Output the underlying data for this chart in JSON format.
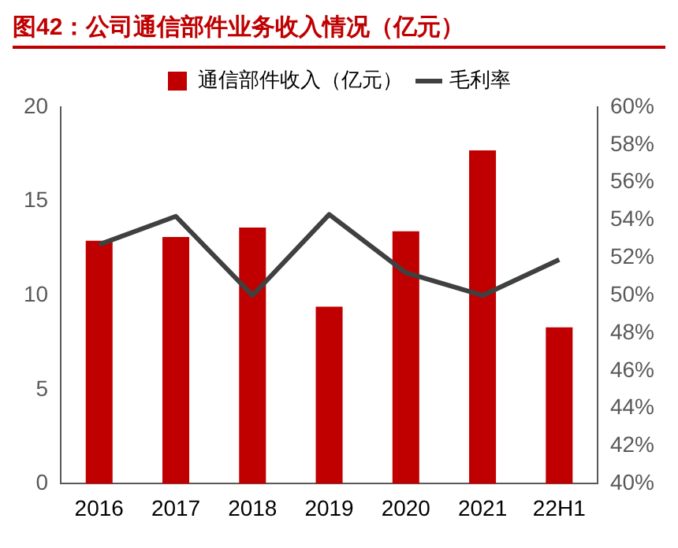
{
  "chart_data": {
    "type": "bar",
    "title": "图42：公司通信部件业务收入情况（亿元）",
    "categories": [
      "2016",
      "2017",
      "2018",
      "2019",
      "2020",
      "2021",
      "22H1"
    ],
    "series": [
      {
        "name": "通信部件收入（亿元）",
        "color": "#c00000",
        "values": [
          12.9,
          13.1,
          13.6,
          9.4,
          13.4,
          17.7,
          8.3
        ]
      },
      {
        "name": "毛利率",
        "type": "line",
        "axis": "y2",
        "color": "#404040",
        "values": [
          52.7,
          54.2,
          50.0,
          54.3,
          51.2,
          50.0,
          51.9
        ]
      }
    ],
    "ylim": [
      0,
      20
    ],
    "yticks": [
      0,
      5,
      10,
      15,
      20
    ],
    "y2lim": [
      40,
      60
    ],
    "y2ticks": [
      {
        "value": 40,
        "label": "40%"
      },
      {
        "value": 42,
        "label": "42%"
      },
      {
        "value": 44,
        "label": "44%"
      },
      {
        "value": 46,
        "label": "46%"
      },
      {
        "value": 48,
        "label": "48%"
      },
      {
        "value": 50,
        "label": "50%"
      },
      {
        "value": 52,
        "label": "52%"
      },
      {
        "value": 54,
        "label": "54%"
      },
      {
        "value": 56,
        "label": "56%"
      },
      {
        "value": 58,
        "label": "58%"
      },
      {
        "value": 60,
        "label": "60%"
      }
    ],
    "grid": false,
    "legend": "top",
    "marker": "none",
    "line_style": "solid"
  }
}
